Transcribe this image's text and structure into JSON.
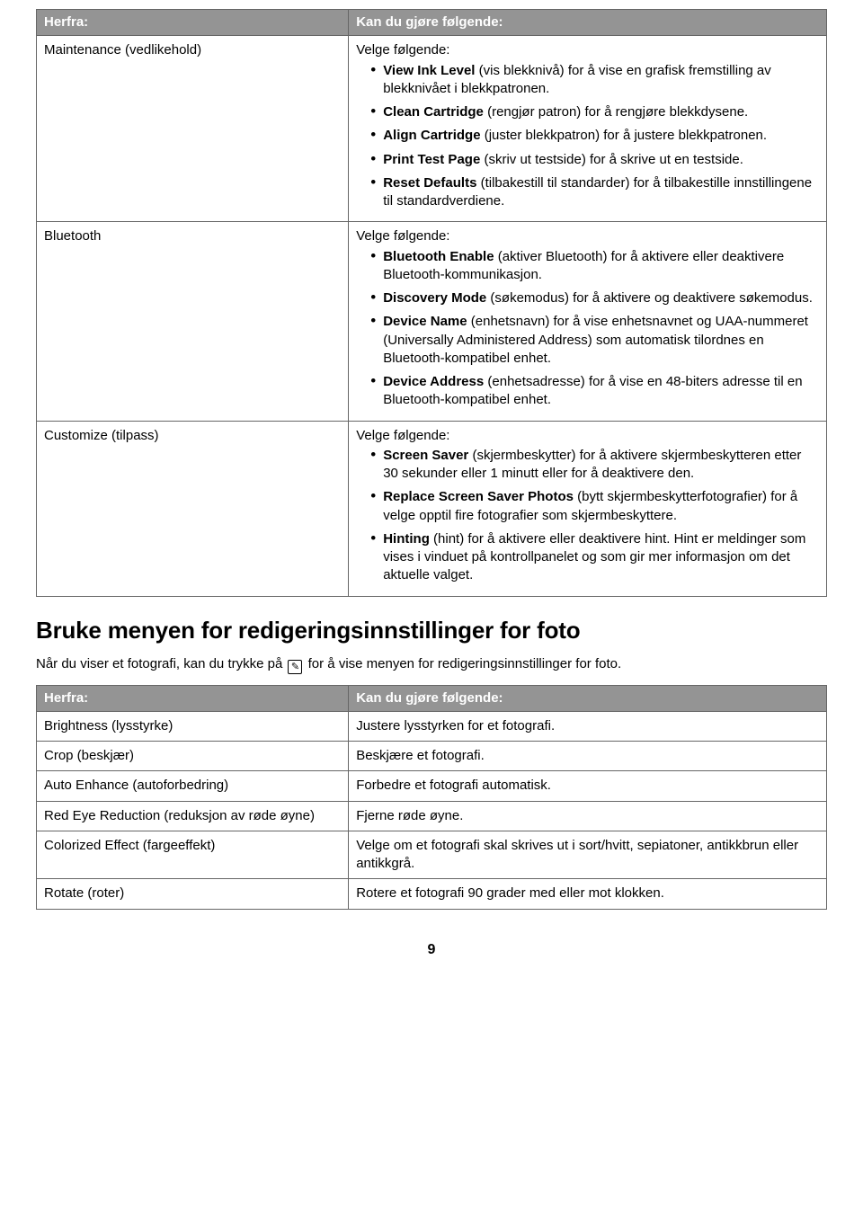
{
  "table1": {
    "header_left": "Herfra:",
    "header_right": "Kan du gjøre følgende:",
    "rows": [
      {
        "left": "Maintenance (vedlikehold)",
        "lead": "Velge følgende:",
        "items": [
          {
            "b": "View Ink Level",
            "t": " (vis blekknivå) for å vise en grafisk fremstilling av blekknivået i blekkpatronen."
          },
          {
            "b": "Clean Cartridge",
            "t": " (rengjør patron) for å rengjøre blekkdysene."
          },
          {
            "b": "Align Cartridge",
            "t": " (juster blekkpatron) for å justere blekkpatronen."
          },
          {
            "b": "Print Test Page",
            "t": " (skriv ut testside) for å skrive ut en testside."
          },
          {
            "b": "Reset Defaults",
            "t": " (tilbakestill til standarder) for å tilbakestille innstillingene til standardverdiene."
          }
        ]
      },
      {
        "left": "Bluetooth",
        "lead": "Velge følgende:",
        "items": [
          {
            "b": "Bluetooth Enable",
            "t": " (aktiver Bluetooth) for å aktivere eller deaktivere Bluetooth-kommunikasjon."
          },
          {
            "b": "Discovery Mode",
            "t": " (søkemodus) for å aktivere og deaktivere søkemodus."
          },
          {
            "b": "Device Name",
            "t": " (enhetsnavn) for å vise enhetsnavnet og UAA-nummeret (Universally Administered Address) som automatisk tilordnes en Bluetooth-kompatibel enhet."
          },
          {
            "b": "Device Address",
            "t": " (enhetsadresse) for å vise en 48-biters adresse til en Bluetooth-kompatibel enhet."
          }
        ]
      },
      {
        "left": "Customize (tilpass)",
        "lead": "Velge følgende:",
        "items": [
          {
            "b": "Screen Saver",
            "t": " (skjermbeskytter) for å aktivere skjermbeskytteren etter 30 sekunder eller 1 minutt eller for å deaktivere den."
          },
          {
            "b": "Replace Screen Saver Photos",
            "t": " (bytt skjermbeskytterfotografier) for å velge opptil fire fotografier som skjermbeskyttere."
          },
          {
            "b": "Hinting",
            "t": " (hint) for å aktivere eller deaktivere hint. Hint er meldinger som vises i vinduet på kontrollpanelet og som gir mer informasjon om det aktuelle valget."
          }
        ]
      }
    ]
  },
  "section_heading": "Bruke menyen for redigeringsinnstillinger for foto",
  "intro_pre": "Når du viser et fotografi, kan du trykke på ",
  "intro_icon": "✎",
  "intro_post": " for å vise menyen for redigeringsinnstillinger for foto.",
  "table2": {
    "header_left": "Herfra:",
    "header_right": "Kan du gjøre følgende:",
    "rows": [
      {
        "left": "Brightness (lysstyrke)",
        "right": "Justere lysstyrken for et fotografi."
      },
      {
        "left": "Crop (beskjær)",
        "right": "Beskjære et fotografi."
      },
      {
        "left": "Auto Enhance (autoforbedring)",
        "right": "Forbedre et fotografi automatisk."
      },
      {
        "left": "Red Eye Reduction (reduksjon av røde øyne)",
        "right": "Fjerne røde øyne."
      },
      {
        "left": "Colorized Effect (fargeeffekt)",
        "right": "Velge om et fotografi skal skrives ut i sort/hvitt, sepiatoner, antikkbrun eller antikkgrå."
      },
      {
        "left": "Rotate (roter)",
        "right": "Rotere et fotografi 90 grader med eller mot klokken."
      }
    ]
  },
  "page_number": "9"
}
